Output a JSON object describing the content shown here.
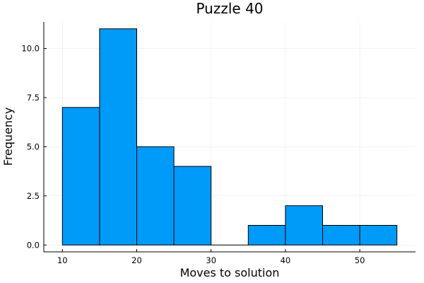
{
  "chart_data": {
    "type": "bar",
    "title": "Puzzle 40",
    "xlabel": "Moves to solution",
    "ylabel": "Frequency",
    "bins": [
      {
        "start": 10,
        "end": 15,
        "value": 7
      },
      {
        "start": 15,
        "end": 20,
        "value": 11
      },
      {
        "start": 20,
        "end": 25,
        "value": 5
      },
      {
        "start": 25,
        "end": 30,
        "value": 4
      },
      {
        "start": 30,
        "end": 35,
        "value": 0
      },
      {
        "start": 35,
        "end": 40,
        "value": 1
      },
      {
        "start": 40,
        "end": 45,
        "value": 2
      },
      {
        "start": 45,
        "end": 50,
        "value": 1
      },
      {
        "start": 50,
        "end": 55,
        "value": 1
      }
    ],
    "xlim": [
      7.5,
      57.5
    ],
    "ylim": [
      -0.35,
      11.35
    ],
    "xticks": [
      10,
      20,
      30,
      40,
      50
    ],
    "xtick_labels": [
      "10",
      "20",
      "30",
      "40",
      "50"
    ],
    "yticks": [
      0,
      2.5,
      5,
      7.5,
      10
    ],
    "ytick_labels": [
      "0.0",
      "2.5",
      "5.0",
      "7.5",
      "10.0"
    ],
    "grid": true,
    "legend": "none",
    "bar_color": "#009af9",
    "edge_color": "#000000"
  }
}
